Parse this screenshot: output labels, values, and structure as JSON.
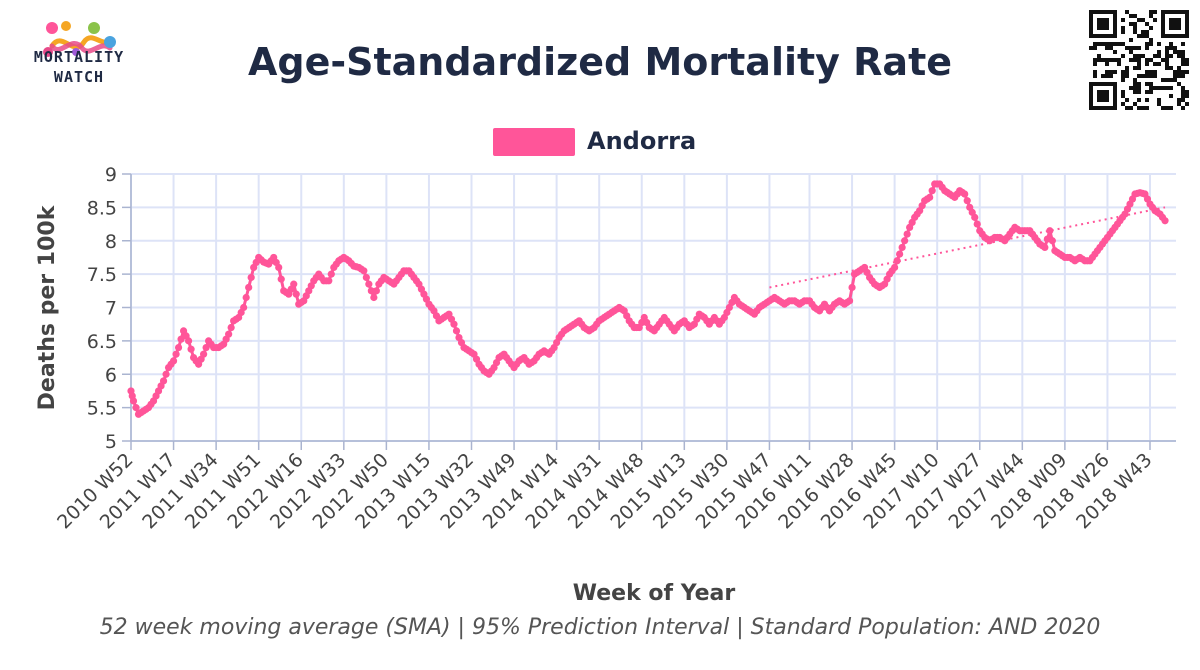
{
  "header": {
    "logo_line1": "MORTALITY",
    "logo_line2": "WATCH",
    "title": "Age-Standardized Mortality Rate"
  },
  "legend": {
    "label": "Andorra",
    "color": "#ff5599"
  },
  "caption": "52 week moving average (SMA) | 95% Prediction Interval | Standard Population: AND 2020",
  "chart_data": {
    "type": "line",
    "title": "Age-Standardized Mortality Rate",
    "xlabel": "Week of Year",
    "ylabel": "Deaths per 100k",
    "ylim": [
      5,
      9
    ],
    "y_ticks": [
      "5",
      "5.5",
      "6",
      "6.5",
      "7",
      "7.5",
      "8",
      "8.5",
      "9"
    ],
    "x_tick_labels": [
      "2010 W52",
      "2011 W17",
      "2011 W34",
      "2011 W51",
      "2012 W16",
      "2012 W33",
      "2012 W50",
      "2013 W15",
      "2013 W32",
      "2013 W49",
      "2014 W14",
      "2014 W31",
      "2014 W48",
      "2015 W13",
      "2015 W30",
      "2015 W47",
      "2016 W11",
      "2016 W28",
      "2016 W45",
      "2017 W10",
      "2017 W27",
      "2017 W44",
      "2018 W09",
      "2018 W26",
      "2018 W43"
    ],
    "grid": true,
    "legend_position": "top-center",
    "series": [
      {
        "name": "Andorra",
        "color": "#ff5599",
        "anchors": [
          [
            "2010 W52",
            5.75
          ],
          [
            "2011 W01",
            5.6
          ],
          [
            "2011 W03",
            5.4
          ],
          [
            "2011 W05",
            5.45
          ],
          [
            "2011 W07",
            5.5
          ],
          [
            "2011 W09",
            5.6
          ],
          [
            "2011 W11",
            5.75
          ],
          [
            "2011 W13",
            5.9
          ],
          [
            "2011 W15",
            6.1
          ],
          [
            "2011 W17",
            6.2
          ],
          [
            "2011 W19",
            6.4
          ],
          [
            "2011 W21",
            6.65
          ],
          [
            "2011 W23",
            6.5
          ],
          [
            "2011 W25",
            6.25
          ],
          [
            "2011 W27",
            6.15
          ],
          [
            "2011 W29",
            6.3
          ],
          [
            "2011 W31",
            6.5
          ],
          [
            "2011 W33",
            6.4
          ],
          [
            "2011 W35",
            6.4
          ],
          [
            "2011 W37",
            6.45
          ],
          [
            "2011 W39",
            6.6
          ],
          [
            "2011 W41",
            6.8
          ],
          [
            "2011 W43",
            6.85
          ],
          [
            "2011 W45",
            7.0
          ],
          [
            "2011 W47",
            7.3
          ],
          [
            "2011 W49",
            7.6
          ],
          [
            "2011 W51",
            7.75
          ],
          [
            "2012 W01",
            7.68
          ],
          [
            "2012 W03",
            7.65
          ],
          [
            "2012 W05",
            7.75
          ],
          [
            "2012 W07",
            7.6
          ],
          [
            "2012 W09",
            7.25
          ],
          [
            "2012 W11",
            7.2
          ],
          [
            "2012 W13",
            7.35
          ],
          [
            "2012 W15",
            7.05
          ],
          [
            "2012 W17",
            7.1
          ],
          [
            "2012 W19",
            7.25
          ],
          [
            "2012 W21",
            7.4
          ],
          [
            "2012 W23",
            7.5
          ],
          [
            "2012 W25",
            7.4
          ],
          [
            "2012 W27",
            7.4
          ],
          [
            "2012 W29",
            7.6
          ],
          [
            "2012 W31",
            7.7
          ],
          [
            "2012 W33",
            7.75
          ],
          [
            "2012 W35",
            7.7
          ],
          [
            "2012 W37",
            7.62
          ],
          [
            "2012 W39",
            7.6
          ],
          [
            "2012 W41",
            7.55
          ],
          [
            "2012 W43",
            7.35
          ],
          [
            "2012 W45",
            7.15
          ],
          [
            "2012 W47",
            7.35
          ],
          [
            "2012 W49",
            7.45
          ],
          [
            "2012 W51",
            7.4
          ],
          [
            "2013 W01",
            7.35
          ],
          [
            "2013 W03",
            7.45
          ],
          [
            "2013 W05",
            7.55
          ],
          [
            "2013 W07",
            7.55
          ],
          [
            "2013 W09",
            7.45
          ],
          [
            "2013 W11",
            7.35
          ],
          [
            "2013 W13",
            7.2
          ],
          [
            "2013 W15",
            7.05
          ],
          [
            "2013 W17",
            6.95
          ],
          [
            "2013 W19",
            6.8
          ],
          [
            "2013 W21",
            6.85
          ],
          [
            "2013 W23",
            6.9
          ],
          [
            "2013 W25",
            6.75
          ],
          [
            "2013 W27",
            6.55
          ],
          [
            "2013 W29",
            6.4
          ],
          [
            "2013 W31",
            6.35
          ],
          [
            "2013 W33",
            6.3
          ],
          [
            "2013 W35",
            6.15
          ],
          [
            "2013 W37",
            6.05
          ],
          [
            "2013 W39",
            6.0
          ],
          [
            "2013 W41",
            6.1
          ],
          [
            "2013 W43",
            6.25
          ],
          [
            "2013 W45",
            6.3
          ],
          [
            "2013 W47",
            6.2
          ],
          [
            "2013 W49",
            6.1
          ],
          [
            "2013 W51",
            6.2
          ],
          [
            "2014 W01",
            6.25
          ],
          [
            "2014 W03",
            6.15
          ],
          [
            "2014 W05",
            6.2
          ],
          [
            "2014 W07",
            6.3
          ],
          [
            "2014 W09",
            6.35
          ],
          [
            "2014 W11",
            6.3
          ],
          [
            "2014 W13",
            6.4
          ],
          [
            "2014 W15",
            6.55
          ],
          [
            "2014 W17",
            6.65
          ],
          [
            "2014 W19",
            6.7
          ],
          [
            "2014 W21",
            6.75
          ],
          [
            "2014 W23",
            6.8
          ],
          [
            "2014 W25",
            6.7
          ],
          [
            "2014 W27",
            6.65
          ],
          [
            "2014 W29",
            6.7
          ],
          [
            "2014 W31",
            6.8
          ],
          [
            "2014 W33",
            6.85
          ],
          [
            "2014 W35",
            6.9
          ],
          [
            "2014 W37",
            6.95
          ],
          [
            "2014 W39",
            7.0
          ],
          [
            "2014 W41",
            6.95
          ],
          [
            "2014 W43",
            6.8
          ],
          [
            "2014 W45",
            6.7
          ],
          [
            "2014 W47",
            6.7
          ],
          [
            "2014 W49",
            6.85
          ],
          [
            "2014 W51",
            6.7
          ],
          [
            "2015 W01",
            6.65
          ],
          [
            "2015 W03",
            6.75
          ],
          [
            "2015 W05",
            6.85
          ],
          [
            "2015 W07",
            6.75
          ],
          [
            "2015 W09",
            6.65
          ],
          [
            "2015 W11",
            6.75
          ],
          [
            "2015 W13",
            6.8
          ],
          [
            "2015 W15",
            6.7
          ],
          [
            "2015 W17",
            6.75
          ],
          [
            "2015 W19",
            6.9
          ],
          [
            "2015 W21",
            6.85
          ],
          [
            "2015 W23",
            6.75
          ],
          [
            "2015 W25",
            6.85
          ],
          [
            "2015 W27",
            6.75
          ],
          [
            "2015 W29",
            6.85
          ],
          [
            "2015 W31",
            7.0
          ],
          [
            "2015 W33",
            7.15
          ],
          [
            "2015 W35",
            7.05
          ],
          [
            "2015 W37",
            7.0
          ],
          [
            "2015 W39",
            6.95
          ],
          [
            "2015 W41",
            6.9
          ],
          [
            "2015 W43",
            7.0
          ],
          [
            "2015 W45",
            7.05
          ],
          [
            "2015 W47",
            7.1
          ],
          [
            "2015 W49",
            7.15
          ],
          [
            "2015 W51",
            7.1
          ],
          [
            "2016 W01",
            7.05
          ],
          [
            "2016 W03",
            7.1
          ],
          [
            "2016 W05",
            7.1
          ],
          [
            "2016 W07",
            7.05
          ],
          [
            "2016 W09",
            7.1
          ],
          [
            "2016 W11",
            7.1
          ],
          [
            "2016 W13",
            7.0
          ],
          [
            "2016 W15",
            6.95
          ],
          [
            "2016 W17",
            7.05
          ],
          [
            "2016 W19",
            6.95
          ],
          [
            "2016 W21",
            7.05
          ],
          [
            "2016 W23",
            7.1
          ],
          [
            "2016 W25",
            7.05
          ],
          [
            "2016 W27",
            7.1
          ],
          [
            "2016 W29",
            7.5
          ],
          [
            "2016 W31",
            7.55
          ],
          [
            "2016 W33",
            7.6
          ],
          [
            "2016 W35",
            7.45
          ],
          [
            "2016 W37",
            7.35
          ],
          [
            "2016 W39",
            7.3
          ],
          [
            "2016 W41",
            7.35
          ],
          [
            "2016 W43",
            7.5
          ],
          [
            "2016 W45",
            7.6
          ],
          [
            "2016 W47",
            7.8
          ],
          [
            "2016 W49",
            8.0
          ],
          [
            "2016 W51",
            8.2
          ],
          [
            "2017 W01",
            8.35
          ],
          [
            "2017 W03",
            8.45
          ],
          [
            "2017 W05",
            8.6
          ],
          [
            "2017 W07",
            8.65
          ],
          [
            "2017 W09",
            8.85
          ],
          [
            "2017 W11",
            8.85
          ],
          [
            "2017 W13",
            8.75
          ],
          [
            "2017 W15",
            8.7
          ],
          [
            "2017 W17",
            8.65
          ],
          [
            "2017 W19",
            8.75
          ],
          [
            "2017 W21",
            8.7
          ],
          [
            "2017 W23",
            8.5
          ],
          [
            "2017 W25",
            8.35
          ],
          [
            "2017 W27",
            8.15
          ],
          [
            "2017 W29",
            8.05
          ],
          [
            "2017 W31",
            8.0
          ],
          [
            "2017 W33",
            8.05
          ],
          [
            "2017 W35",
            8.05
          ],
          [
            "2017 W37",
            8.0
          ],
          [
            "2017 W39",
            8.1
          ],
          [
            "2017 W41",
            8.2
          ],
          [
            "2017 W43",
            8.15
          ],
          [
            "2017 W45",
            8.15
          ],
          [
            "2017 W47",
            8.15
          ],
          [
            "2017 W49",
            8.05
          ],
          [
            "2017 W51",
            7.95
          ],
          [
            "2018 W01",
            7.9
          ],
          [
            "2018 W03",
            8.15
          ],
          [
            "2018 W05",
            7.85
          ],
          [
            "2018 W07",
            7.8
          ],
          [
            "2018 W09",
            7.75
          ],
          [
            "2018 W11",
            7.75
          ],
          [
            "2018 W13",
            7.7
          ],
          [
            "2018 W15",
            7.75
          ],
          [
            "2018 W17",
            7.7
          ],
          [
            "2018 W19",
            7.7
          ],
          [
            "2018 W21",
            7.8
          ],
          [
            "2018 W23",
            7.9
          ],
          [
            "2018 W25",
            8.0
          ],
          [
            "2018 W27",
            8.1
          ],
          [
            "2018 W29",
            8.2
          ],
          [
            "2018 W31",
            8.3
          ],
          [
            "2018 W33",
            8.4
          ],
          [
            "2018 W35",
            8.55
          ],
          [
            "2018 W37",
            8.7
          ],
          [
            "2018 W39",
            8.72
          ],
          [
            "2018 W41",
            8.7
          ],
          [
            "2018 W43",
            8.55
          ],
          [
            "2018 W45",
            8.45
          ],
          [
            "2018 W47",
            8.4
          ],
          [
            "2018 W49",
            8.3
          ]
        ]
      },
      {
        "color": "#ff5599",
        "style": "dotted",
        "anchors": [
          [
            "2015 W47",
            7.3
          ],
          [
            "2018 W49",
            8.5
          ]
        ]
      }
    ]
  }
}
